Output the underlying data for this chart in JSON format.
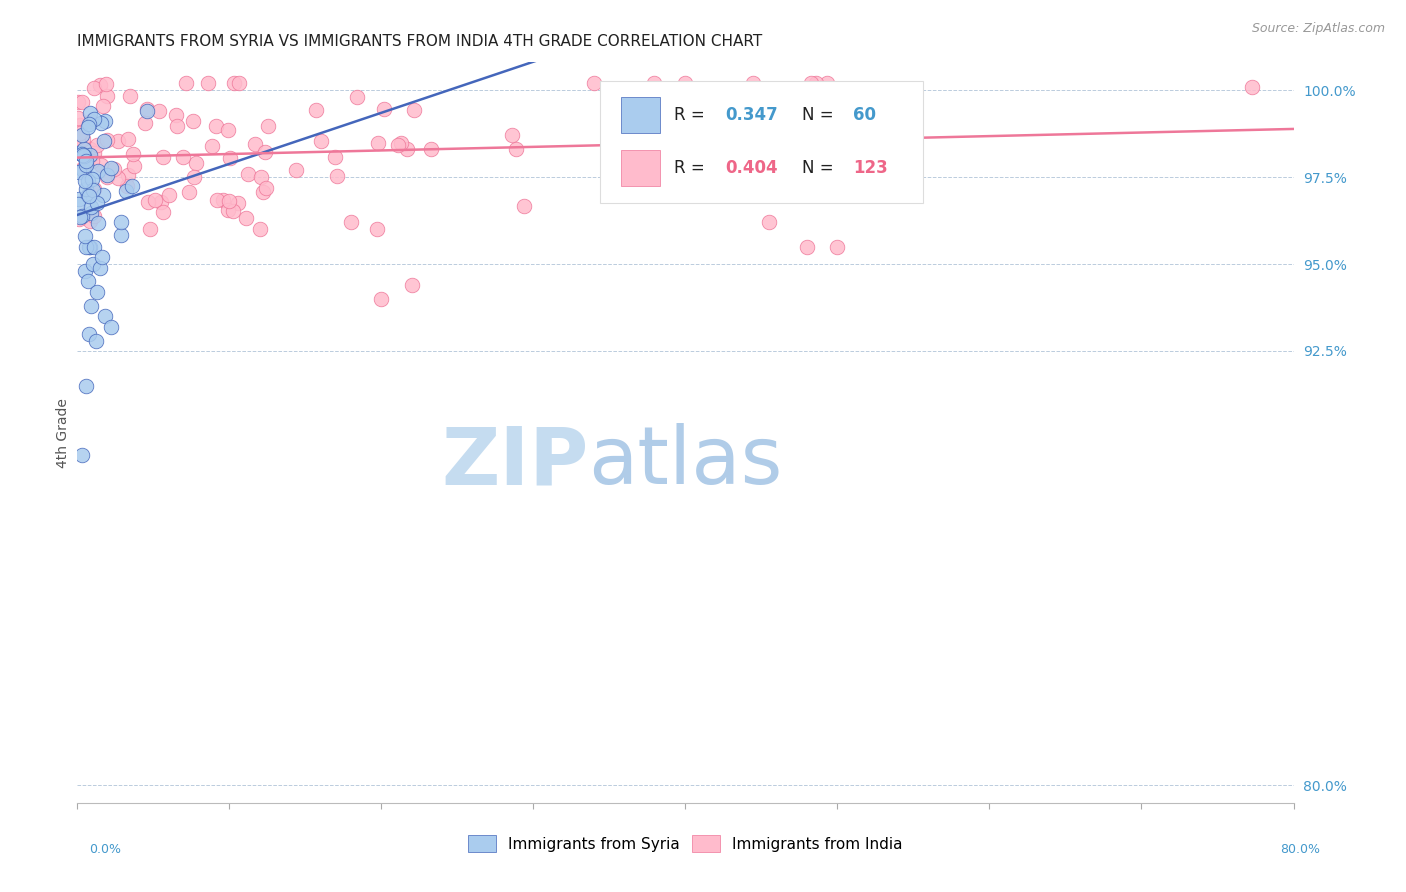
{
  "title": "IMMIGRANTS FROM SYRIA VS IMMIGRANTS FROM INDIA 4TH GRADE CORRELATION CHART",
  "source": "Source: ZipAtlas.com",
  "ylabel": "4th Grade",
  "legend_syria": "Immigrants from Syria",
  "legend_india": "Immigrants from India",
  "R_syria": 0.347,
  "N_syria": 60,
  "R_india": 0.404,
  "N_india": 123,
  "color_syria": "#aaccee",
  "color_india": "#ffbbcc",
  "line_color_syria": "#4466bb",
  "line_color_india": "#ee7799",
  "right_ytick_vals": [
    0.8,
    0.925,
    0.95,
    0.975,
    1.0
  ],
  "right_yticks": [
    "80.0%",
    "92.5%",
    "95.0%",
    "97.5%",
    "100.0%"
  ],
  "xlim": [
    0.0,
    0.8
  ],
  "ylim": [
    0.795,
    1.008
  ],
  "watermark_ZIP_color": "#c8dff5",
  "watermark_atlas_color": "#b8d0e8",
  "title_fontsize": 11,
  "source_fontsize": 9
}
